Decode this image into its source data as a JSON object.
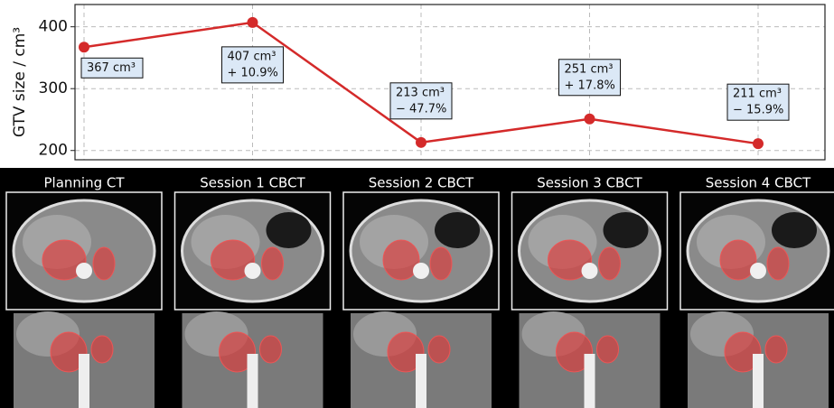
{
  "chart_data": {
    "type": "line",
    "y_label": "GTV size / cm³",
    "categories": [
      "Planning CT",
      "Session 1 CBCT",
      "Session 2 CBCT",
      "Session 3 CBCT",
      "Session 4 CBCT"
    ],
    "values": [
      367,
      407,
      213,
      251,
      211
    ],
    "value_labels": [
      "367 cm³",
      "407 cm³",
      "213 cm³",
      "251 cm³",
      "211 cm³"
    ],
    "change_labels": [
      null,
      "+ 10.9%",
      "− 47.7%",
      "+ 17.8%",
      "− 15.9%"
    ],
    "color": "#d42a2a",
    "ylim": [
      185,
      436
    ],
    "yticks": [
      200,
      300,
      400
    ],
    "grid": true
  }
}
